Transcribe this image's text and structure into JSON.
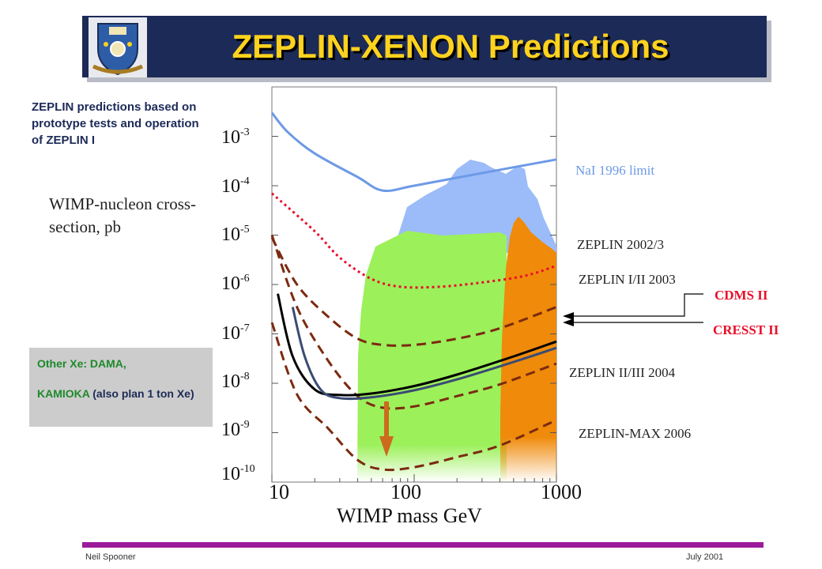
{
  "slide": {
    "title": "ZEPLIN-XENON Predictions",
    "note": "ZEPLIN predictions based on prototype tests and operation of ZEPLIN I",
    "other_box": {
      "line1": "Other Xe: DAMA,",
      "line2_green": "KAMIOKA",
      "line2_rest": " (also plan 1 ton Xe)"
    },
    "footer_left": "Neil Spooner",
    "footer_right": "July 2001"
  },
  "colors": {
    "banner": "#1c2a57",
    "title": "#ffd21e",
    "nai": "#6d9ae6",
    "cdms_cresst": "#e8102a",
    "zeplin_dashed": "#7b2a10",
    "green_region": "#9cf05a",
    "orange_region": "#ef8a0a",
    "blue_region": "#9bbcf8",
    "footer_bar": "#9b1b9b"
  },
  "chart_data": {
    "type": "line",
    "x_scale": "log",
    "y_scale": "log",
    "xlim": [
      10,
      1000
    ],
    "ylim": [
      1e-10,
      0.01
    ],
    "xlabel": "WIMP mass GeV",
    "ylabel": "WIMP-nucleon cross-section, pb",
    "x_ticks": [
      "10",
      "100",
      "1000"
    ],
    "y_ticks": [
      {
        "base": "10",
        "exp": "-3"
      },
      {
        "base": "10",
        "exp": "-4"
      },
      {
        "base": "10",
        "exp": "-5"
      },
      {
        "base": "10",
        "exp": "-6"
      },
      {
        "base": "10",
        "exp": "-7"
      },
      {
        "base": "10",
        "exp": "-8"
      },
      {
        "base": "10",
        "exp": "-9"
      },
      {
        "base": "10",
        "exp": "-10"
      }
    ],
    "curve_labels": {
      "nai": "NaI 1996 limit",
      "z2002": "ZEPLIN 2002/3",
      "z2003": "ZEPLIN I/II 2003",
      "z2004": "ZEPLIN II/III  2004",
      "zmax": "ZEPLIN-MAX  2006",
      "cdms": "CDMS II",
      "cresst": "CRESST II"
    },
    "series": [
      {
        "key": "nai",
        "style": "solid",
        "x": [
          10,
          13,
          20,
          40,
          60,
          100,
          300,
          1000
        ],
        "y": [
          0.003,
          0.0012,
          0.00045,
          0.00015,
          8e-05,
          0.0001,
          0.00018,
          0.00034
        ]
      },
      {
        "key": "z2002",
        "style": "dotted",
        "x": [
          10,
          20,
          30,
          50,
          80,
          150,
          300,
          600,
          1000
        ],
        "y": [
          7e-05,
          1.2e-05,
          3.5e-06,
          1.3e-06,
          9e-07,
          9e-07,
          1.1e-06,
          1.5e-06,
          2.4e-06
        ]
      },
      {
        "key": "z2003",
        "style": "dashed",
        "x": [
          10,
          15,
          25,
          40,
          60,
          100,
          200,
          400,
          1000
        ],
        "y": [
          9e-06,
          1e-06,
          2.2e-07,
          8e-08,
          6e-08,
          6e-08,
          8e-08,
          1.3e-07,
          3.5e-07
        ]
      },
      {
        "key": "z2004",
        "style": "dashed",
        "x": [
          10,
          15,
          25,
          40,
          60,
          100,
          200,
          400,
          1000
        ],
        "y": [
          1e-05,
          3.5e-07,
          2.8e-08,
          5.5e-09,
          3.2e-09,
          3.4e-09,
          5.5e-09,
          9.5e-09,
          2.5e-08
        ]
      },
      {
        "key": "zmax",
        "style": "dashed",
        "x": [
          10,
          15,
          25,
          40,
          60,
          100,
          200,
          400,
          1000
        ],
        "y": [
          1.7e-07,
          6e-09,
          1.2e-09,
          2.8e-10,
          1.8e-10,
          2e-10,
          3.2e-10,
          5.5e-10,
          1.8e-09
        ]
      },
      {
        "key": "cdms",
        "style": "solid",
        "x": [
          11,
          14,
          20,
          30,
          50,
          100,
          200,
          500,
          1000
        ],
        "y": [
          6.5e-07,
          3.5e-08,
          7.5e-09,
          5.8e-09,
          6.2e-09,
          8.8e-09,
          1.5e-08,
          3.5e-08,
          7e-08
        ]
      },
      {
        "key": "cresst",
        "style": "solid",
        "x": [
          14,
          17,
          22,
          30,
          50,
          100,
          200,
          500,
          1000
        ],
        "y": [
          3.5e-07,
          3.5e-08,
          7.5e-09,
          5e-09,
          5.2e-09,
          7.2e-09,
          1.2e-08,
          2.7e-08,
          5.2e-08
        ]
      }
    ]
  }
}
